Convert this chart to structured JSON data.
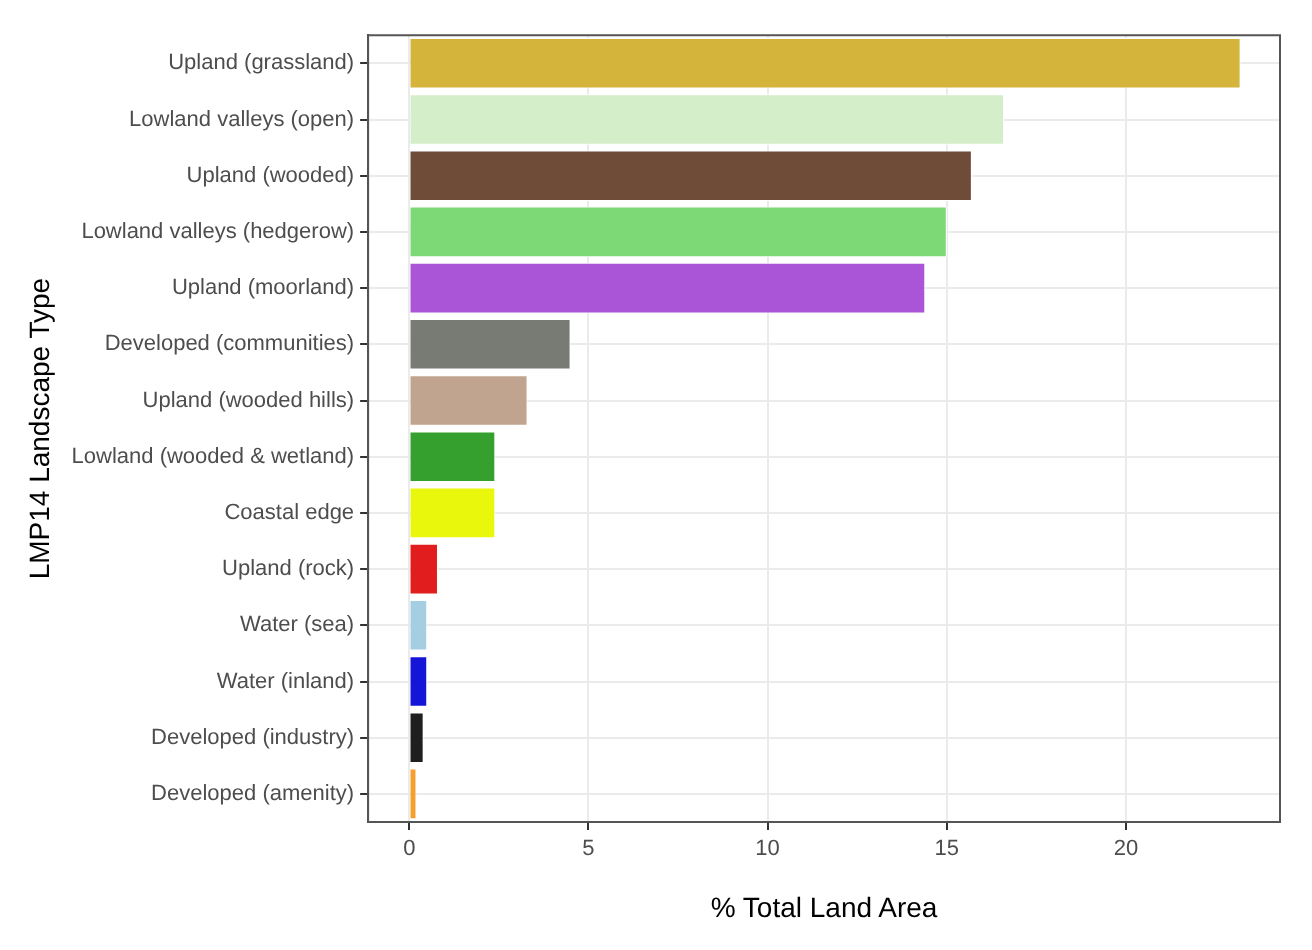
{
  "chart_data": {
    "type": "bar",
    "orientation": "horizontal",
    "xlabel": "% Total Land Area",
    "ylabel": "LMP14 Landscape Type",
    "categories": [
      "Upland (grassland)",
      "Lowland valleys (open)",
      "Upland (wooded)",
      "Lowland valleys (hedgerow)",
      "Upland (moorland)",
      "Developed (communities)",
      "Upland (wooded hills)",
      "Lowland (wooded & wetland)",
      "Coastal edge",
      "Upland (rock)",
      "Water (sea)",
      "Water (inland)",
      "Developed (industry)",
      "Developed (amenity)"
    ],
    "values": [
      23.2,
      16.6,
      15.7,
      15.0,
      14.4,
      4.5,
      3.3,
      2.4,
      2.4,
      0.8,
      0.5,
      0.5,
      0.4,
      0.2
    ],
    "colors": [
      "#d4b43a",
      "#d4eec9",
      "#6e4c38",
      "#7cd975",
      "#aa55d8",
      "#787a74",
      "#c0a48f",
      "#36a02e",
      "#e8f70c",
      "#e21d1d",
      "#a6cee3",
      "#1515d8",
      "#1f1f1f",
      "#f5a02e"
    ],
    "xlim": [
      -1.15,
      24.3
    ],
    "xticks": [
      0,
      5,
      10,
      15,
      20
    ],
    "grid": true
  }
}
